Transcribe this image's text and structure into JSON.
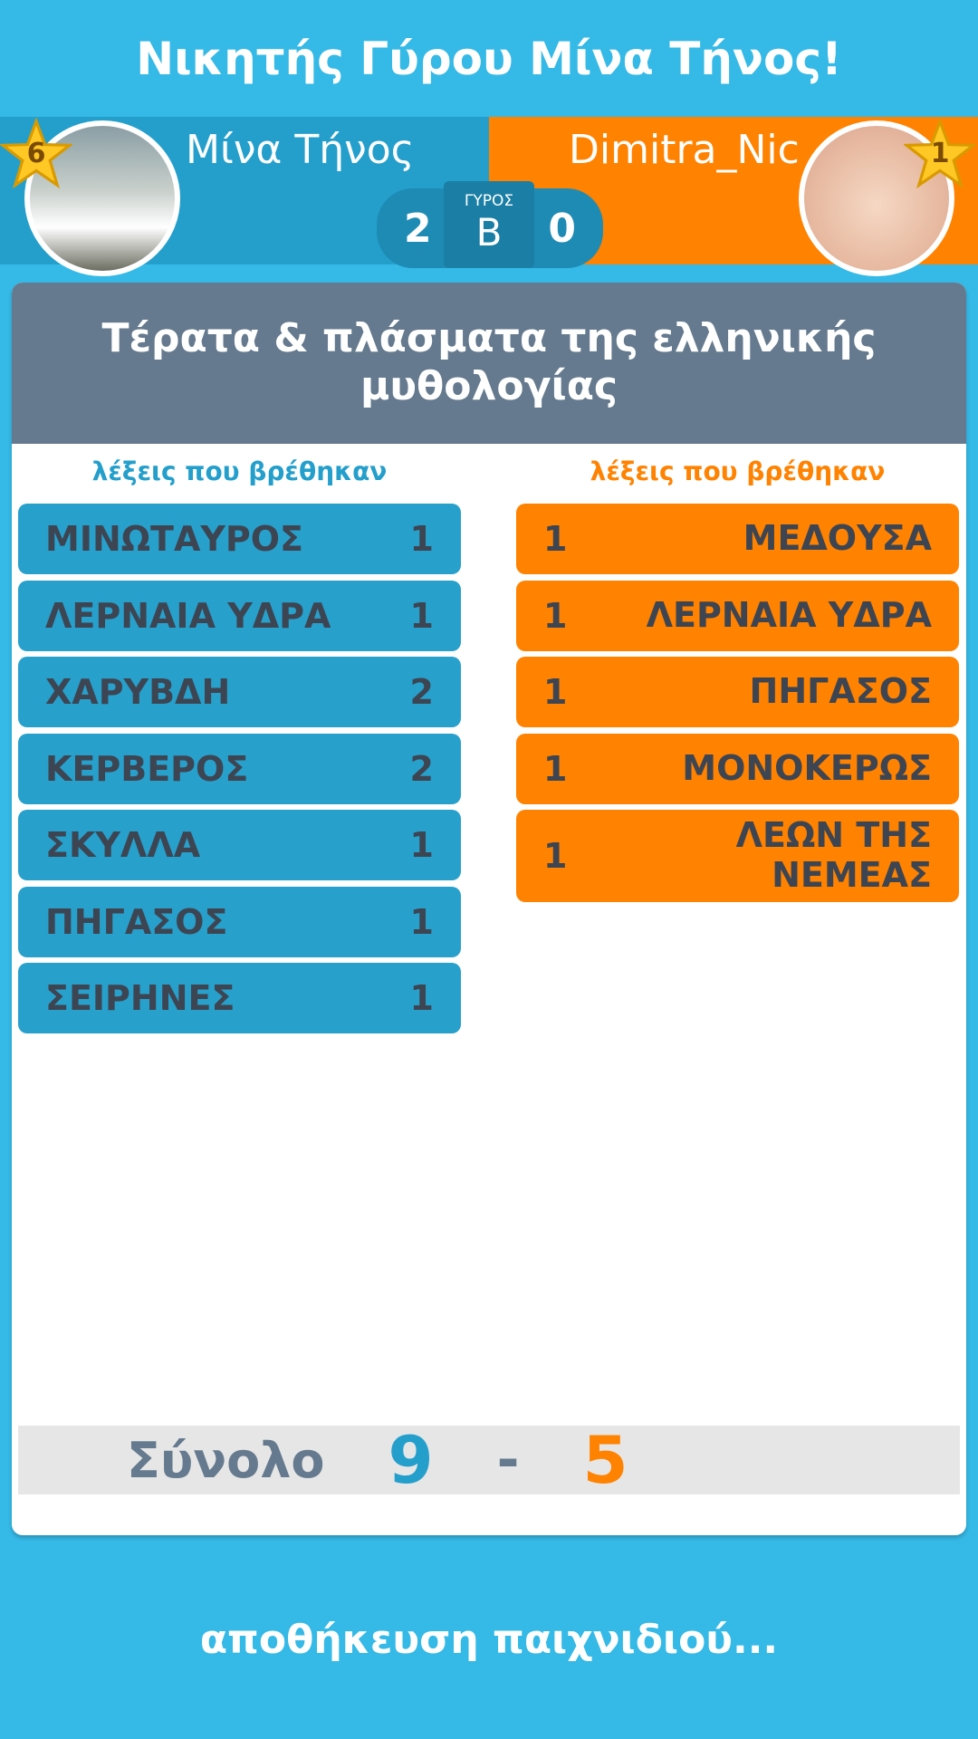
{
  "title": "Νικητής Γύρου Μίνα Τήνος!",
  "players": {
    "left": {
      "name": "Μίνα Τήνος",
      "level": "6",
      "score": "2",
      "color": "#249fcc"
    },
    "right": {
      "name": "Dimitra_Nic",
      "level": "1",
      "score": "0",
      "color": "#ff8200"
    }
  },
  "round": {
    "label": "ΓΥΡΟΣ",
    "value": "B"
  },
  "category": "Τέρατα & πλάσματα της ελληνικής μυθολογίας",
  "left_column": {
    "label": "λέξεις που βρέθηκαν",
    "words": [
      {
        "word": "ΜΙΝΩΤΑΥΡΟΣ",
        "points": "1"
      },
      {
        "word": "ΛΕΡΝΑΙΑ ΥΔΡΑ",
        "points": "1"
      },
      {
        "word": "ΧΑΡΥΒΔΗ",
        "points": "2"
      },
      {
        "word": "ΚΕΡΒΕΡΟΣ",
        "points": "2"
      },
      {
        "word": "ΣΚΥΛΛΑ",
        "points": "1"
      },
      {
        "word": "ΠΗΓΑΣΟΣ",
        "points": "1"
      },
      {
        "word": "ΣΕΙΡΗΝΕΣ",
        "points": "1"
      }
    ]
  },
  "right_column": {
    "label": "λέξεις που βρέθηκαν",
    "words": [
      {
        "word": "ΜΕΔΟΥΣΑ",
        "points": "1"
      },
      {
        "word": "ΛΕΡΝΑΙΑ ΥΔΡΑ",
        "points": "1"
      },
      {
        "word": "ΠΗΓΑΣΟΣ",
        "points": "1"
      },
      {
        "word": "ΜΟΝΟΚΕΡΩΣ",
        "points": "1"
      },
      {
        "word": "ΛΕΩΝ ΤΗΣ ΝΕΜΕΑΣ",
        "points": "1"
      }
    ]
  },
  "total": {
    "label": "Σύνολο",
    "left": "9",
    "separator": "-",
    "right": "5"
  },
  "status": "αποθήκευση παιχνιδιού..."
}
